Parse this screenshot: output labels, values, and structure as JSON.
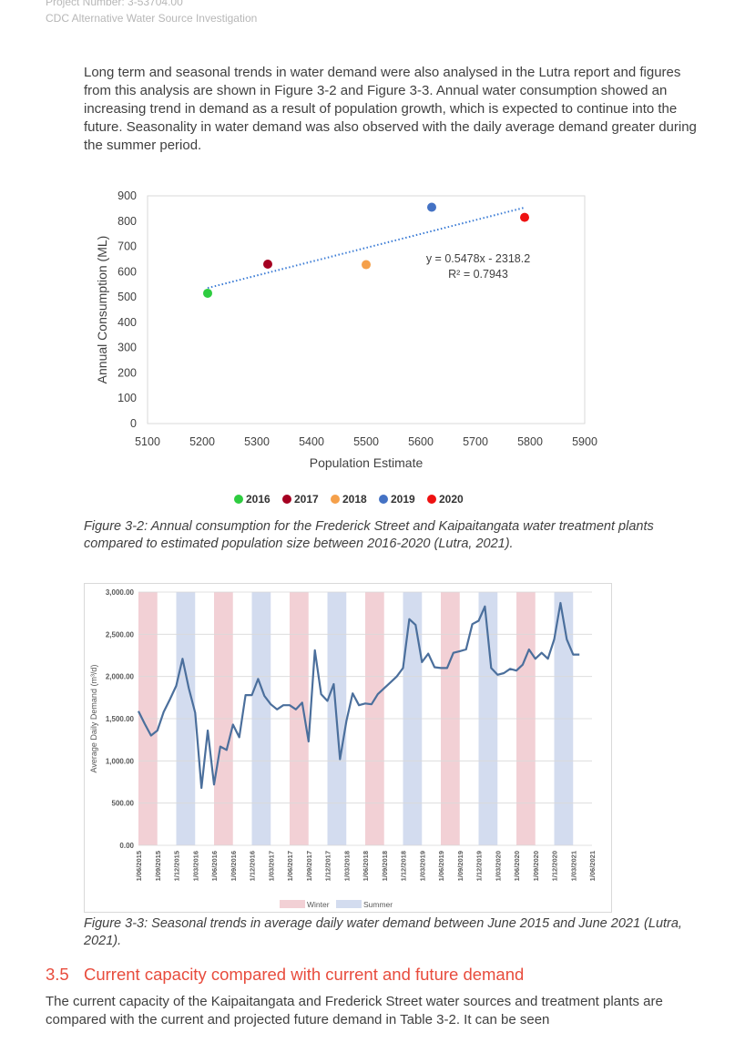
{
  "header": {
    "project_number": "Project Number: 3-53704.00",
    "project_title": "CDC Alternative Water Source Investigation"
  },
  "intro_paragraph": "Long term and seasonal trends in water demand were also analysed in the Lutra report and figures from this analysis are shown in Figure 3-2 and Figure 3-3. Annual water consumption showed an increasing trend in demand as a result of population growth, which is expected to continue into the future. Seasonality in water demand was also observed with the daily average demand greater during the summer period.",
  "figure1_caption": "Figure 3-2: Annual consumption for the Frederick Street and Kaipaitangata water treatment plants compared to estimated population size between 2016-2020 (Lutra, 2021).",
  "figure2_caption": "Figure 3-3: Seasonal trends in average daily water demand between June 2015 and June 2021 (Lutra, 2021).",
  "section": {
    "number": "3.5",
    "title": "Current capacity compared with current and future demand"
  },
  "section_paragraph": "The current capacity of the Kaipaitangata and Frederick Street water sources and treatment plants are compared with the current and projected future demand in Table 3-2. It can be seen",
  "chart_data": [
    {
      "type": "scatter",
      "xlabel": "Population Estimate",
      "ylabel": "Annual Consumption (ML)",
      "xlim": [
        5100,
        5900
      ],
      "ylim": [
        0,
        900
      ],
      "xticks": [
        5100,
        5200,
        5300,
        5400,
        5500,
        5600,
        5700,
        5800,
        5900
      ],
      "yticks": [
        0,
        100,
        200,
        300,
        400,
        500,
        600,
        700,
        800,
        900
      ],
      "grid": true,
      "legend_position": "bottom",
      "series": [
        {
          "name": "2016",
          "color": "#2ecc40",
          "x": 5210,
          "y": 515
        },
        {
          "name": "2017",
          "color": "#a50021",
          "x": 5320,
          "y": 630
        },
        {
          "name": "2018",
          "color": "#f5a04a",
          "x": 5500,
          "y": 628
        },
        {
          "name": "2019",
          "color": "#4472c4",
          "x": 5620,
          "y": 855
        },
        {
          "name": "2020",
          "color": "#ee1111",
          "x": 5790,
          "y": 815
        }
      ],
      "trendline": {
        "color": "#3a7bd5",
        "slope": 0.5478,
        "intercept": -2318.2,
        "x_range": [
          5210,
          5790
        ],
        "equation": "y = 0.5478x - 2318.2",
        "r_squared": "R² = 0.7943"
      }
    },
    {
      "type": "line",
      "ylabel": "Average Daily Demand (m³/d)",
      "ylim": [
        0,
        3000
      ],
      "yticks": [
        "0.00",
        "500.00",
        "1,000.00",
        "1,500.00",
        "2,000.00",
        "2,500.00",
        "3,000.00"
      ],
      "xlim_months": [
        0,
        72
      ],
      "xtick_labels": [
        "1/06/2015",
        "1/09/2015",
        "1/12/2015",
        "1/03/2016",
        "1/06/2016",
        "1/09/2016",
        "1/12/2016",
        "1/03/2017",
        "1/06/2017",
        "1/09/2017",
        "1/12/2017",
        "1/03/2018",
        "1/06/2018",
        "1/09/2018",
        "1/12/2018",
        "1/03/2019",
        "1/06/2019",
        "1/09/2019",
        "1/12/2019",
        "1/03/2020",
        "1/06/2020",
        "1/09/2020",
        "1/12/2020",
        "1/03/2021",
        "1/06/2021"
      ],
      "legend": [
        {
          "name": "Winter",
          "color": "#f2d0d5"
        },
        {
          "name": "Summer",
          "color": "#d3dcef"
        }
      ],
      "legend_position": "bottom",
      "line_color": "#4b6f9c",
      "winter_bands": [
        [
          0,
          3
        ],
        [
          12,
          15
        ],
        [
          24,
          27
        ],
        [
          36,
          39
        ],
        [
          48,
          51
        ],
        [
          60,
          63
        ]
      ],
      "summer_bands": [
        [
          6,
          9
        ],
        [
          18,
          21
        ],
        [
          30,
          33
        ],
        [
          42,
          45
        ],
        [
          54,
          57
        ],
        [
          66,
          69
        ]
      ],
      "series": [
        {
          "name": "Average Daily Demand",
          "x": [
            0,
            1,
            2,
            3,
            4,
            5,
            6,
            7,
            8,
            9,
            10,
            11,
            12,
            13,
            14,
            15,
            16,
            17,
            18,
            19,
            20,
            21,
            22,
            23,
            24,
            25,
            26,
            27,
            28,
            29,
            30,
            31,
            32,
            33,
            34,
            35,
            36,
            37,
            38,
            39,
            40,
            41,
            42,
            43,
            44,
            45,
            46,
            47,
            48,
            49,
            50,
            51,
            52,
            53,
            54,
            55,
            56,
            57,
            58,
            59,
            60,
            61,
            62,
            63,
            64,
            65,
            66,
            67,
            68,
            69,
            70
          ],
          "values": [
            1590,
            1440,
            1300,
            1360,
            1580,
            1730,
            1890,
            2210,
            1860,
            1570,
            680,
            1360,
            720,
            1170,
            1130,
            1430,
            1280,
            1780,
            1780,
            1970,
            1770,
            1670,
            1610,
            1660,
            1660,
            1610,
            1690,
            1230,
            2310,
            1790,
            1710,
            1910,
            1020,
            1470,
            1800,
            1660,
            1680,
            1670,
            1790,
            1860,
            1930,
            2000,
            2100,
            2680,
            2610,
            2170,
            2270,
            2110,
            2100,
            2100,
            2280,
            2300,
            2320,
            2620,
            2660,
            2830,
            2100,
            2020,
            2040,
            2090,
            2070,
            2140,
            2320,
            2210,
            2280,
            2210,
            2440,
            2870,
            2440,
            2260,
            2260
          ]
        }
      ]
    }
  ]
}
